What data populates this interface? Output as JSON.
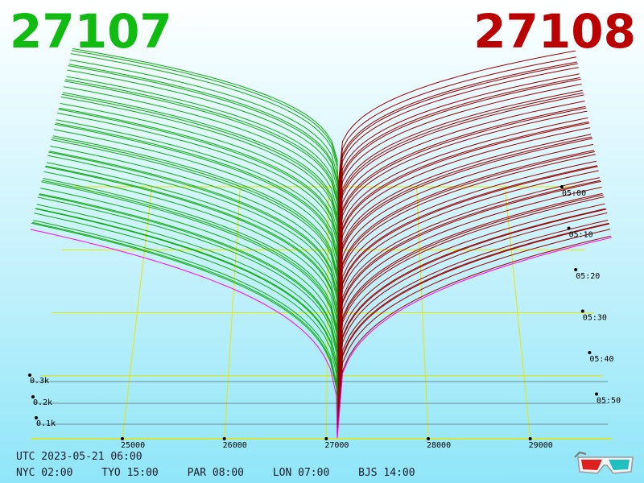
{
  "header": {
    "bid_price": "27107",
    "ask_price": "27108",
    "bid_color": "#11bb11",
    "ask_color": "#bb0000"
  },
  "chart_data": {
    "type": "area",
    "x_ticks": [
      "25000",
      "26000",
      "27000",
      "28000",
      "29000"
    ],
    "depth_ticks": [
      "0.3k",
      "0.2k",
      "0.1k"
    ],
    "time_ticks": [
      "05:00",
      "05:10",
      "05:20",
      "05:30",
      "05:40",
      "05:50"
    ],
    "xlim": [
      24100,
      29800
    ],
    "bid_range": [
      24100,
      27107
    ],
    "ask_range": [
      27108,
      29800
    ],
    "snapshot_count": 48,
    "bid_series_color": "#11aa11",
    "ask_series_color": "#990000",
    "grid_color": "#e6e600",
    "latest_snapshot_color": "#ff00ff"
  },
  "footer": {
    "utc": "UTC 2023-05-21 06:00",
    "timezones": [
      "NYC 02:00",
      "TYO 15:00",
      "PAR 08:00",
      "LON 07:00",
      "BJS 14:00"
    ]
  },
  "icons": {
    "glasses": "3d-glasses-icon"
  }
}
